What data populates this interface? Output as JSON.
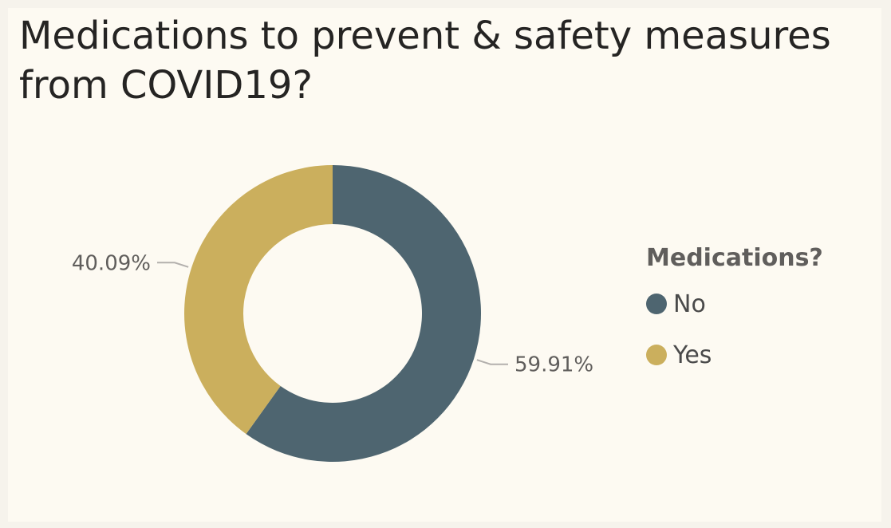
{
  "title": "Medications to prevent & safety measures from COVID19?",
  "legend": {
    "title": "Medications?",
    "items": [
      {
        "label": "No",
        "color": "#4e6570"
      },
      {
        "label": "Yes",
        "color": "#cbaf5d"
      }
    ]
  },
  "chart_data": {
    "type": "pie",
    "variant": "donut",
    "title": "Medications to prevent & safety measures from COVID19?",
    "legend_title": "Medications?",
    "legend_position": "right",
    "categories": [
      "No",
      "Yes"
    ],
    "values": [
      59.91,
      40.09
    ],
    "labels": [
      "59.91%",
      "40.09%"
    ],
    "colors": [
      "#4e6570",
      "#cbaf5d"
    ]
  }
}
